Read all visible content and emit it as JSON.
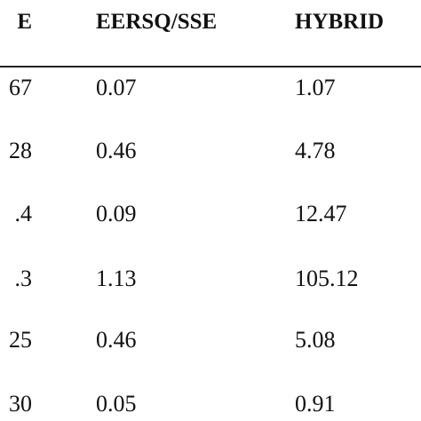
{
  "table": {
    "headers": [
      "E",
      "EERSQ/SSE",
      "HYBRID"
    ],
    "rows": [
      [
        "67",
        "0.07",
        "1.07"
      ],
      [
        "28",
        "0.46",
        "4.78"
      ],
      [
        ".4",
        "0.09",
        "12.47"
      ],
      [
        ".3",
        "1.13",
        "105.12"
      ],
      [
        "25",
        "0.46",
        "5.08"
      ],
      [
        "30",
        "0.05",
        "0.91"
      ]
    ]
  }
}
